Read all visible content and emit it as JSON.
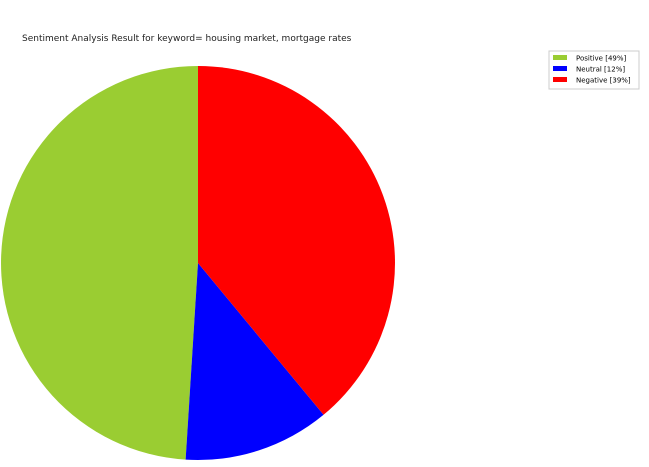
{
  "chart_data": {
    "type": "pie",
    "title": "Sentiment Analysis Result for keyword= housing market, mortgage rates",
    "start_angle_deg": 90,
    "direction": "counterclockwise",
    "legend_placement": "top-right",
    "slices": [
      {
        "label": "Positive [49%]",
        "value": 49,
        "color": "#9acd32"
      },
      {
        "label": "Neutral [12%]",
        "value": 12,
        "color": "#0000ff"
      },
      {
        "label": "Negative [39%]",
        "value": 39,
        "color": "#ff0000"
      }
    ]
  }
}
